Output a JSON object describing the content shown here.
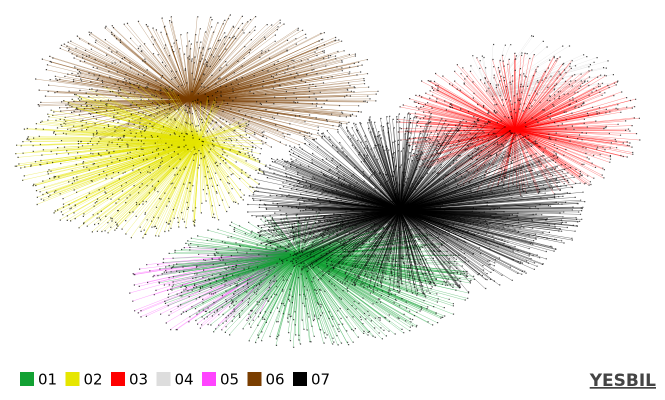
{
  "legend": {
    "items": [
      {
        "label": "01",
        "color": "#12a133"
      },
      {
        "label": "02",
        "color": "#e6e600"
      },
      {
        "label": "03",
        "color": "#ff0000"
      },
      {
        "label": "04",
        "color": "#dddddd"
      },
      {
        "label": "05",
        "color": "#ff44ff"
      },
      {
        "label": "06",
        "color": "#7a3e00"
      },
      {
        "label": "07",
        "color": "#000000"
      }
    ]
  },
  "brand": "YESBIL"
}
